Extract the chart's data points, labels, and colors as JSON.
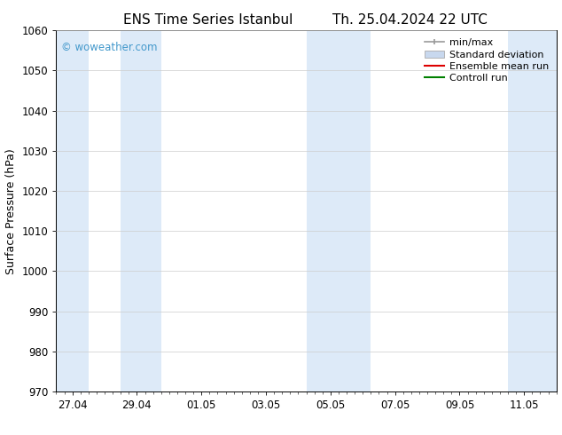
{
  "title": "ENS Time Series Istanbul",
  "title2": "Th. 25.04.2024 22 UTC",
  "ylabel": "Surface Pressure (hPa)",
  "ylim": [
    970,
    1060
  ],
  "yticks": [
    970,
    980,
    990,
    1000,
    1010,
    1020,
    1030,
    1040,
    1050,
    1060
  ],
  "xtick_labels": [
    "27.04",
    "29.04",
    "01.05",
    "03.05",
    "05.05",
    "07.05",
    "09.05",
    "11.05"
  ],
  "xtick_positions": [
    0,
    2,
    4,
    6,
    8,
    10,
    12,
    14
  ],
  "xlim": [
    -0.5,
    15.0
  ],
  "bg_color": "#ffffff",
  "plot_bg_color": "#ffffff",
  "shaded_bands": [
    {
      "x_start": -0.5,
      "x_end": 0.5,
      "color": "#ddeaf8"
    },
    {
      "x_start": 1.5,
      "x_end": 2.75,
      "color": "#ddeaf8"
    },
    {
      "x_start": 7.25,
      "x_end": 9.25,
      "color": "#ddeaf8"
    },
    {
      "x_start": 13.5,
      "x_end": 15.0,
      "color": "#ddeaf8"
    }
  ],
  "legend_entries": [
    {
      "label": "min/max",
      "color": "#999999",
      "type": "errorbar"
    },
    {
      "label": "Standard deviation",
      "color": "#c8d8ee",
      "type": "bar"
    },
    {
      "label": "Ensemble mean run",
      "color": "#dd0000",
      "type": "line"
    },
    {
      "label": "Controll run",
      "color": "#008000",
      "type": "line"
    }
  ],
  "watermark": "© woweather.com",
  "watermark_color": "#4499cc",
  "title_fontsize": 11,
  "tick_fontsize": 8.5,
  "ylabel_fontsize": 9,
  "legend_fontsize": 8
}
